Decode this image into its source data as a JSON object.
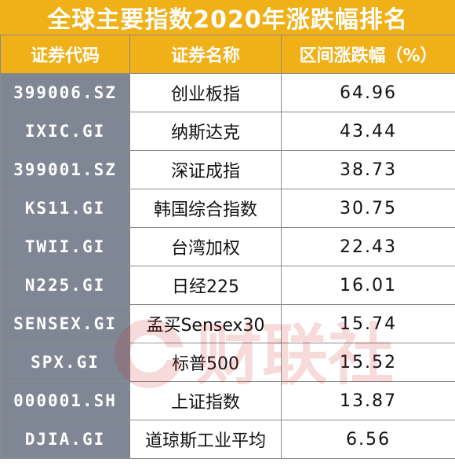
{
  "title": "全球主要指数2020年涨跌幅排名",
  "headers": [
    "证券代码",
    "证券名称",
    "区间涨跌幅（%）"
  ],
  "rows": [
    {
      "code": "399006.SZ",
      "name": "创业板指",
      "change": "64.96"
    },
    {
      "code": "IXIC.GI",
      "name": "纳斯达克",
      "change": "43.44"
    },
    {
      "code": "399001.SZ",
      "name": "深证成指",
      "change": "38.73"
    },
    {
      "code": "KS11.GI",
      "name": "韩国综合指数",
      "change": "30.75"
    },
    {
      "code": "TWII.GI",
      "name": "台湾加权",
      "change": "22.43"
    },
    {
      "code": "N225.GI",
      "name": "日经225",
      "change": "16.01"
    },
    {
      "code": "SENSEX.GI",
      "name": "孟买Sensex30",
      "change": "15.74"
    },
    {
      "code": "SPX.GI",
      "name": "标普500",
      "change": "15.52"
    },
    {
      "code": "000001.SH",
      "name": "上证指数",
      "change": "13.87"
    },
    {
      "code": "DJIA.GI",
      "name": "道琼斯工业平均",
      "change": "6.56"
    }
  ],
  "watermark_text": "财联社",
  "colors": {
    "header": "#f0b018",
    "code_column": "#7f8795",
    "watermark": "#d22020"
  }
}
